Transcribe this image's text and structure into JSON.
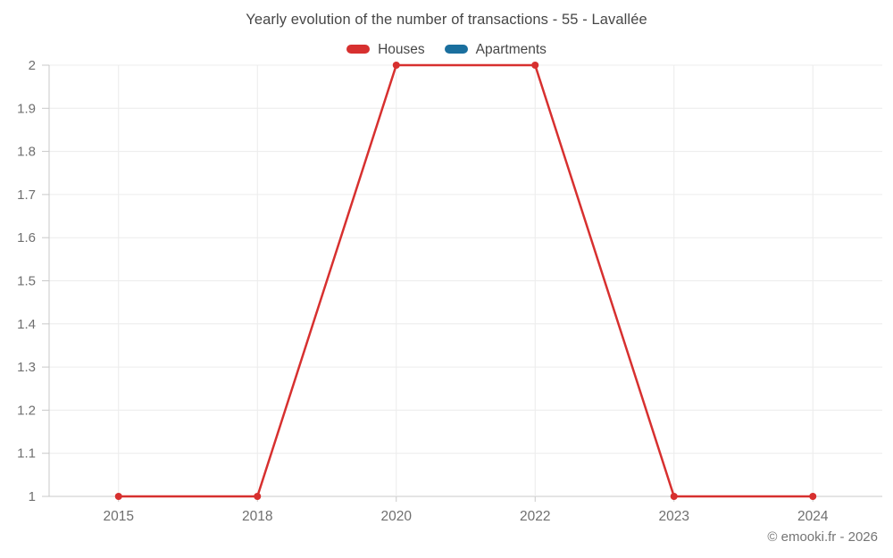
{
  "page": {
    "background": "#ffffff"
  },
  "chart_data": {
    "type": "line",
    "title": "Yearly evolution of the number of transactions - 55 - Lavallée",
    "xlabel": "",
    "ylabel": "",
    "categories": [
      "2015",
      "2018",
      "2020",
      "2022",
      "2023",
      "2024"
    ],
    "series": [
      {
        "name": "Houses",
        "color": "#d7302f",
        "values": [
          1,
          1,
          2,
          2,
          1,
          1
        ]
      },
      {
        "name": "Apartments",
        "color": "#1a6f9e",
        "values": []
      }
    ],
    "ylim": [
      1,
      2
    ],
    "yticks": [
      1,
      1.1,
      1.2,
      1.3,
      1.4,
      1.5,
      1.6,
      1.7,
      1.8,
      1.9,
      2
    ],
    "ytick_labels": [
      "1",
      "1.1",
      "1.2",
      "1.3",
      "1.4",
      "1.5",
      "1.6",
      "1.7",
      "1.8",
      "1.9",
      "2"
    ],
    "grid": true,
    "legend_position": "top",
    "marker_radius": 4,
    "line_width": 2.5
  },
  "style": {
    "axis_color": "#c9c9c9",
    "grid_color": "#ececec",
    "tick_label_color": "#6f6f6f",
    "title_color": "#474747"
  },
  "footer": {
    "copyright": "© emooki.fr - 2026"
  }
}
